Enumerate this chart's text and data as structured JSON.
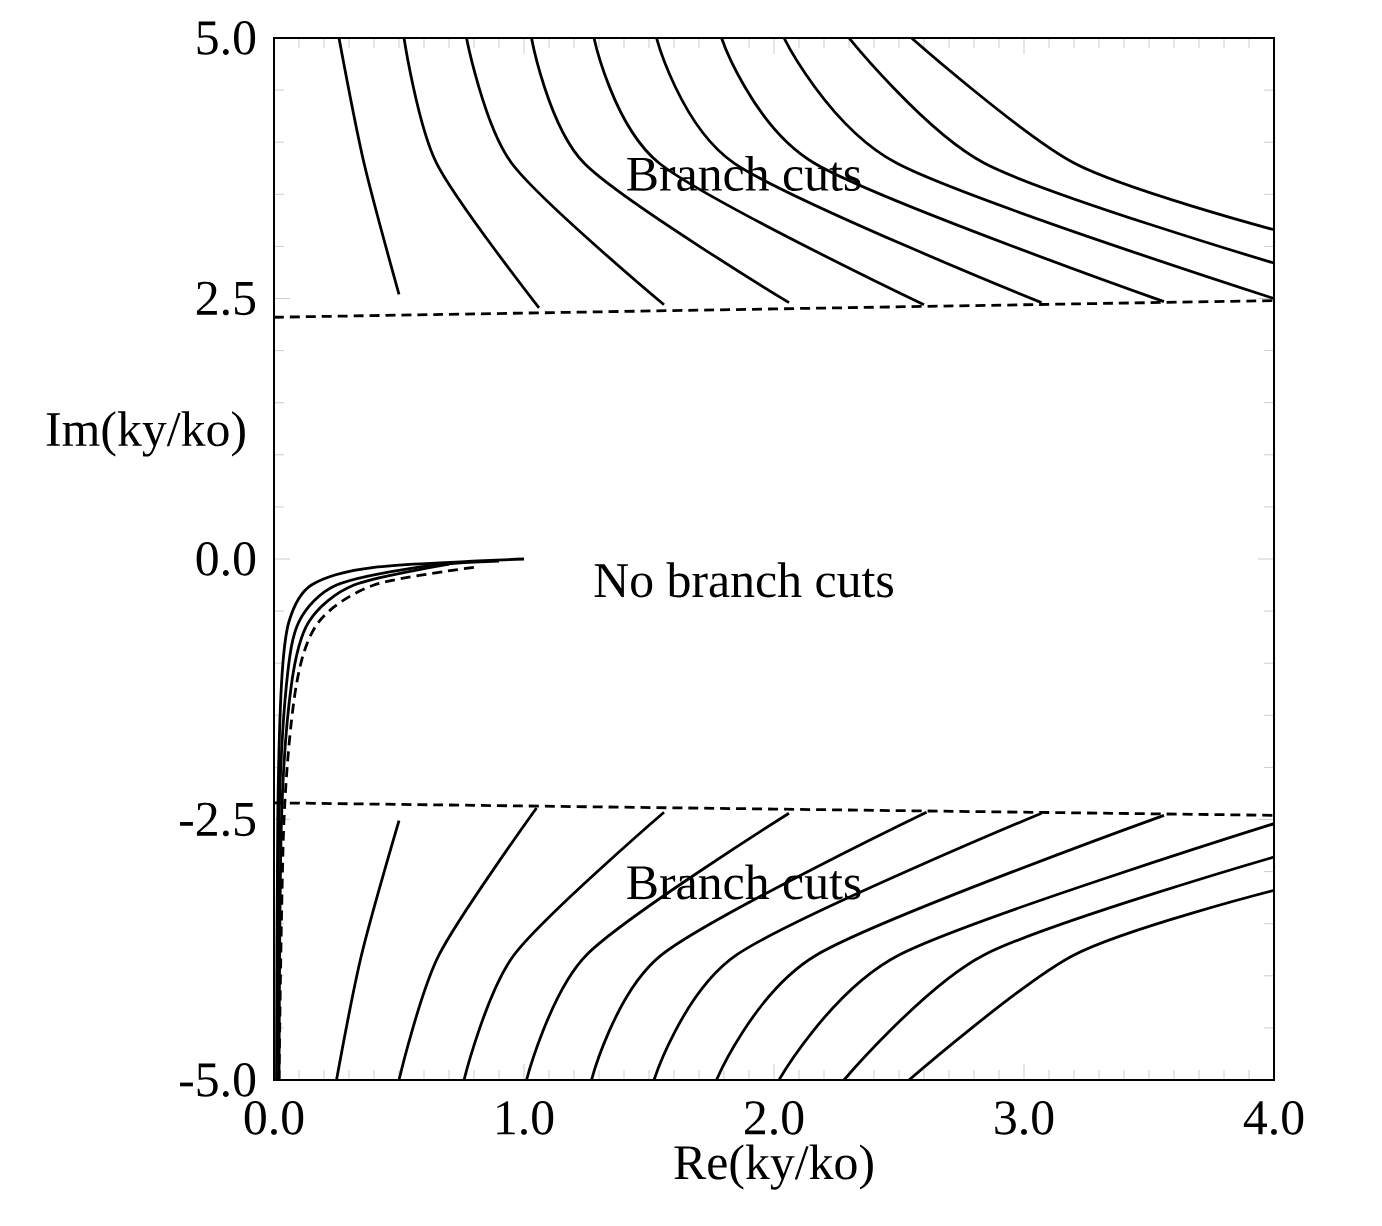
{
  "chart_data": {
    "type": "line",
    "xlabel": "Re(ky/ko)",
    "ylabel": "Im(ky/ko)",
    "xlim": [
      0,
      4
    ],
    "ylim": [
      -5,
      5
    ],
    "xticks": [
      {
        "value": 0,
        "label": "0.0"
      },
      {
        "value": 1,
        "label": "1.0"
      },
      {
        "value": 2,
        "label": "2.0"
      },
      {
        "value": 3,
        "label": "3.0"
      },
      {
        "value": 4,
        "label": "4.0"
      }
    ],
    "yticks": [
      {
        "value": -5,
        "label": "-5.0"
      },
      {
        "value": -2.5,
        "label": "-2.5"
      },
      {
        "value": 0,
        "label": "0.0"
      },
      {
        "value": 2.5,
        "label": "2.5"
      },
      {
        "value": 5,
        "label": "5.0"
      }
    ],
    "line_style": "solid",
    "annotations": [
      "Branch cuts",
      "No branch cuts",
      "Branch cuts"
    ],
    "series": [
      {
        "color": "#000000",
        "x": [
          0.26,
          0.36,
          0.5
        ],
        "values": [
          5,
          3.8,
          2.54
        ]
      },
      {
        "color": "#000000",
        "x": [
          0.52,
          0.65,
          1.06
        ],
        "values": [
          5,
          3.8,
          2.41
        ]
      },
      {
        "color": "#000000",
        "x": [
          0.77,
          0.95,
          1.56
        ],
        "values": [
          5,
          3.8,
          2.44
        ]
      },
      {
        "color": "#000000",
        "x": [
          1.03,
          1.24,
          2.06
        ],
        "values": [
          5,
          3.8,
          2.46
        ]
      },
      {
        "color": "#000000",
        "x": [
          1.28,
          1.54,
          2.6
        ],
        "values": [
          5,
          3.8,
          2.44
        ]
      },
      {
        "color": "#000000",
        "x": [
          1.53,
          1.84,
          3.07
        ],
        "values": [
          5,
          3.8,
          2.46
        ]
      },
      {
        "color": "#000000",
        "x": [
          1.79,
          2.16,
          3.56
        ],
        "values": [
          5,
          3.8,
          2.47
        ]
      },
      {
        "color": "#000000",
        "x": [
          2.04,
          2.49,
          4.0
        ],
        "values": [
          5,
          3.8,
          2.5
        ]
      },
      {
        "color": "#000000",
        "x": [
          2.3,
          2.84,
          4.0
        ],
        "values": [
          5,
          3.8,
          2.84
        ]
      },
      {
        "color": "#000000",
        "x": [
          2.55,
          3.2,
          4.0
        ],
        "values": [
          5,
          3.8,
          3.16
        ]
      },
      {
        "color": "#000000",
        "x": [
          0.25,
          0.35,
          0.5
        ],
        "values": [
          -5,
          -3.8,
          -2.51
        ]
      },
      {
        "color": "#000000",
        "x": [
          0.5,
          0.66,
          1.05
        ],
        "values": [
          -5,
          -3.8,
          -2.39
        ]
      },
      {
        "color": "#000000",
        "x": [
          0.76,
          0.96,
          1.56
        ],
        "values": [
          -5,
          -3.8,
          -2.43
        ]
      },
      {
        "color": "#000000",
        "x": [
          1.01,
          1.25,
          2.06
        ],
        "values": [
          -5,
          -3.8,
          -2.44
        ]
      },
      {
        "color": "#000000",
        "x": [
          1.27,
          1.55,
          2.61
        ],
        "values": [
          -5,
          -3.8,
          -2.43
        ]
      },
      {
        "color": "#000000",
        "x": [
          1.52,
          1.85,
          3.07
        ],
        "values": [
          -5,
          -3.8,
          -2.44
        ]
      },
      {
        "color": "#000000",
        "x": [
          1.77,
          2.17,
          3.56
        ],
        "values": [
          -5,
          -3.8,
          -2.46
        ]
      },
      {
        "color": "#000000",
        "x": [
          2.02,
          2.5,
          4.0
        ],
        "values": [
          -5,
          -3.8,
          -2.54
        ]
      },
      {
        "color": "#000000",
        "x": [
          2.28,
          2.84,
          4.0
        ],
        "values": [
          -5,
          -3.8,
          -2.86
        ]
      },
      {
        "color": "#000000",
        "x": [
          2.54,
          3.2,
          4.0
        ],
        "values": [
          -5,
          -3.8,
          -3.18
        ]
      },
      {
        "color": "#000000",
        "line_style": "dashed",
        "x": [
          0,
          4
        ],
        "values": [
          2.32,
          2.48
        ]
      },
      {
        "color": "#000000",
        "line_style": "dashed",
        "x": [
          0,
          4
        ],
        "values": [
          -2.34,
          -2.46
        ]
      },
      {
        "color": "#000000",
        "x": [
          0.01,
          0.015,
          0.03,
          0.06,
          0.15,
          0.4,
          1.0
        ],
        "values": [
          -5,
          -2.5,
          -1.2,
          -0.6,
          -0.25,
          -0.08,
          0
        ]
      },
      {
        "color": "#000000",
        "x": [
          0.015,
          0.02,
          0.05,
          0.1,
          0.25,
          0.6,
          0.9
        ],
        "values": [
          -4.6,
          -2.5,
          -1.2,
          -0.6,
          -0.25,
          -0.07,
          -0.02
        ]
      },
      {
        "color": "#000000",
        "x": [
          0.02,
          0.03,
          0.07,
          0.14,
          0.32,
          0.7
        ],
        "values": [
          -5,
          -2.5,
          -1.2,
          -0.6,
          -0.25,
          -0.05
        ]
      },
      {
        "color": "#000000",
        "line_style": "dashed",
        "x": [
          0.02,
          0.04,
          0.09,
          0.18,
          0.4,
          0.8
        ],
        "values": [
          -5,
          -2.5,
          -1.2,
          -0.6,
          -0.25,
          -0.08
        ]
      }
    ]
  }
}
